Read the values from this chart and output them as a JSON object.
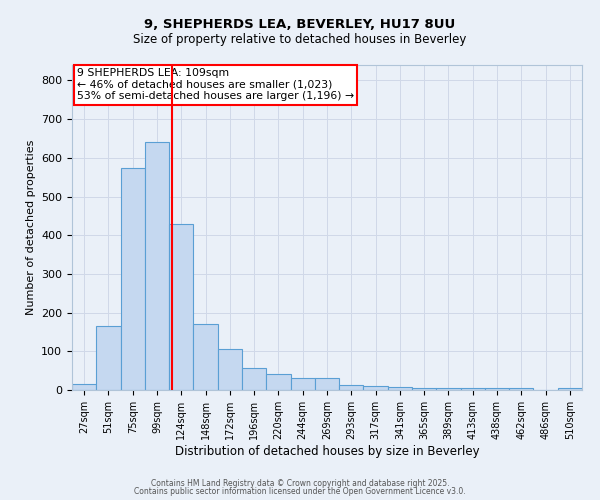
{
  "title1": "9, SHEPHERDS LEA, BEVERLEY, HU17 8UU",
  "title2": "Size of property relative to detached houses in Beverley",
  "xlabel": "Distribution of detached houses by size in Beverley",
  "ylabel": "Number of detached properties",
  "categories": [
    "27sqm",
    "51sqm",
    "75sqm",
    "99sqm",
    "124sqm",
    "148sqm",
    "172sqm",
    "196sqm",
    "220sqm",
    "244sqm",
    "269sqm",
    "293sqm",
    "317sqm",
    "341sqm",
    "365sqm",
    "389sqm",
    "413sqm",
    "438sqm",
    "462sqm",
    "486sqm",
    "510sqm"
  ],
  "values": [
    15,
    165,
    575,
    640,
    430,
    170,
    105,
    57,
    42,
    30,
    30,
    13,
    10,
    8,
    6,
    6,
    6,
    6,
    5,
    0,
    5
  ],
  "bar_color": "#c5d8f0",
  "bar_edge_color": "#5a9fd4",
  "bar_width": 1.0,
  "vline_x": 3.62,
  "vline_color": "red",
  "annotation_text": "9 SHEPHERDS LEA: 109sqm\n← 46% of detached houses are smaller (1,023)\n53% of semi-detached houses are larger (1,196) →",
  "annotation_box_color": "white",
  "annotation_box_edge_color": "red",
  "ylim": [
    0,
    840
  ],
  "yticks": [
    0,
    100,
    200,
    300,
    400,
    500,
    600,
    700,
    800
  ],
  "grid_color": "#d0d8e8",
  "background_color": "#eaf0f8",
  "footer1": "Contains HM Land Registry data © Crown copyright and database right 2025.",
  "footer2": "Contains public sector information licensed under the Open Government Licence v3.0."
}
